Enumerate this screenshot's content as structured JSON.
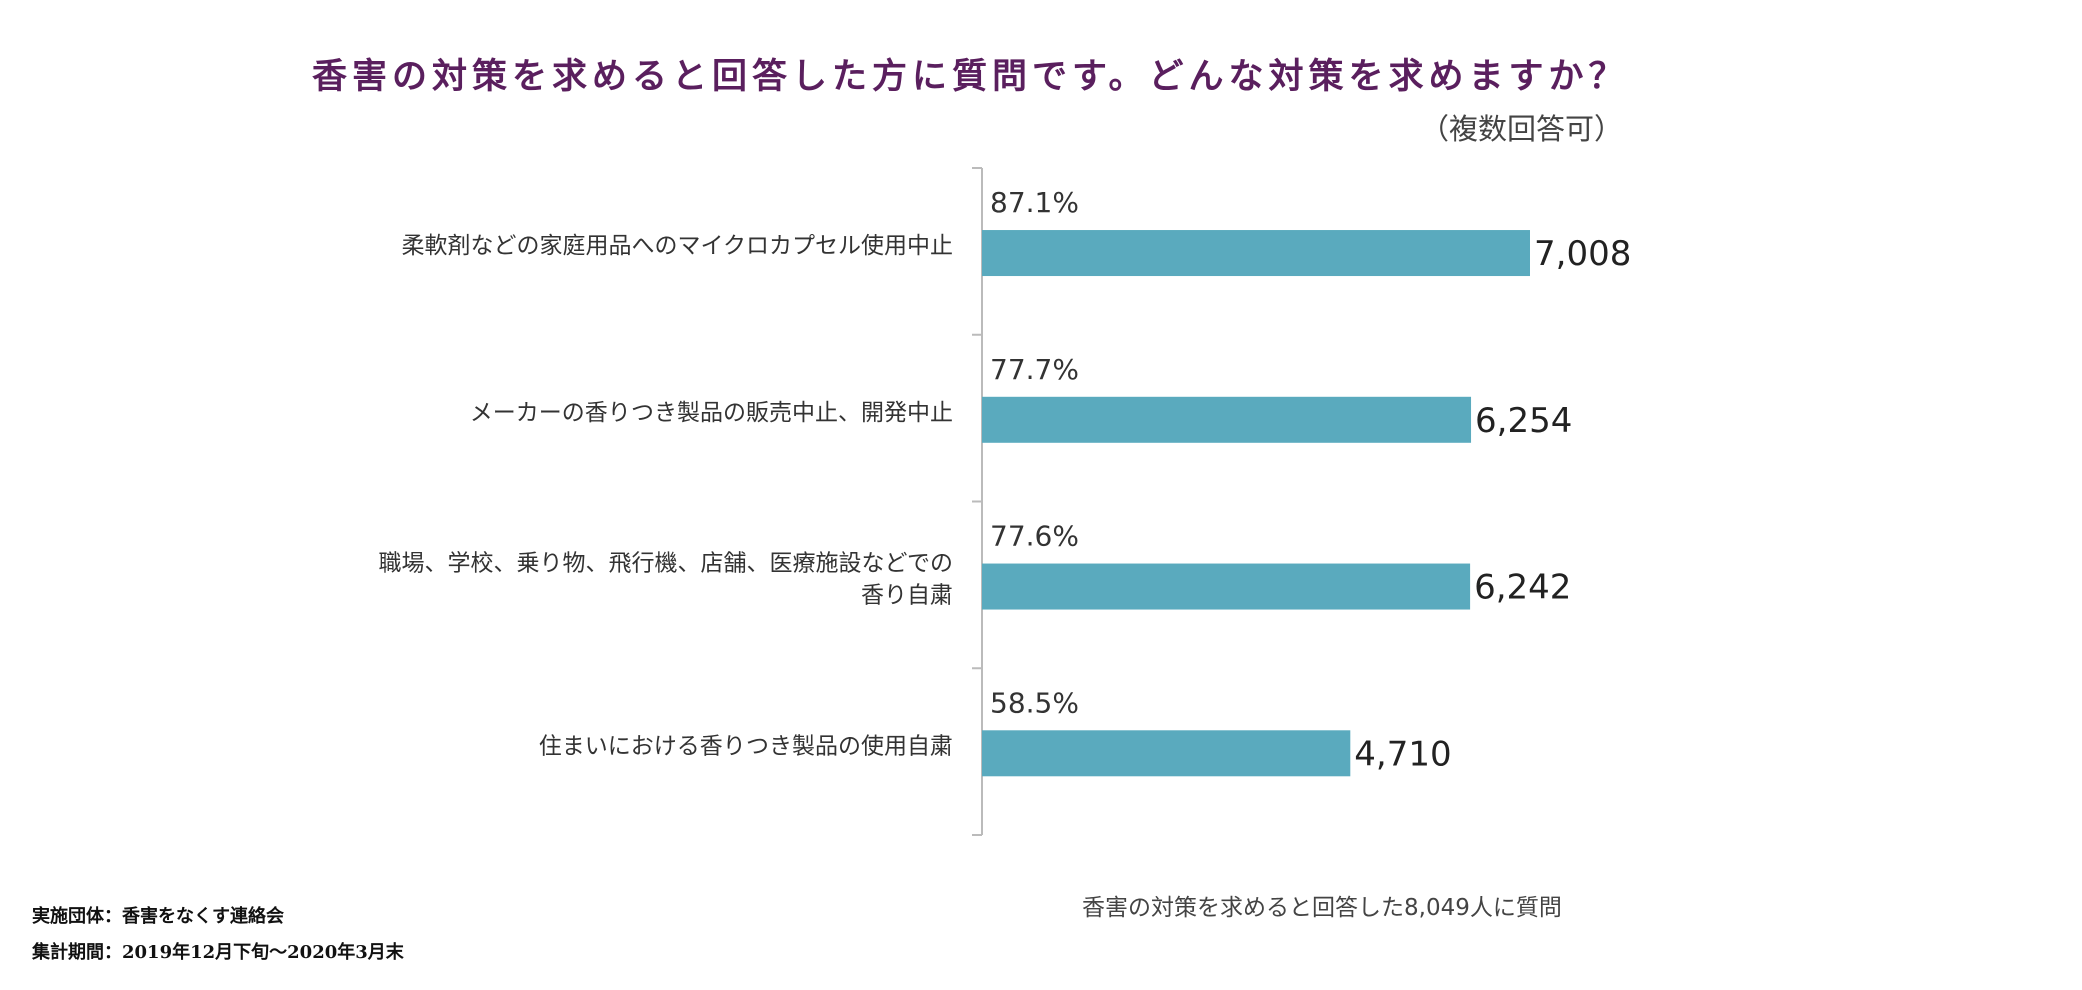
{
  "title": "香害の対策を求めると回答した方に質問です。どんな対策を求めますか？",
  "note": "（複数回答可）",
  "base_note": "香害の対策を求めると回答した8,049人に質問",
  "footer": {
    "organizer": "実施団体：香害をなくす連絡会",
    "period": "集計期間：2019年12月下旬〜2020年3月末"
  },
  "colors": {
    "bar": "#5aaabe",
    "title": "#5a1f5e",
    "axis": "#bbbbbb"
  },
  "chart_data": {
    "type": "bar",
    "orientation": "horizontal",
    "categories": [
      [
        "柔軟剤などの家庭用品へのマイクロカプセル使用中止"
      ],
      [
        "メーカーの香りつき製品の販売中止、開発中止"
      ],
      [
        "職場、学校、乗り物、飛行機、店舗、医療施設などでの",
        "香り自粛"
      ],
      [
        "住まいにおける香りつき製品の使用自粛"
      ]
    ],
    "values": [
      7008,
      6254,
      6242,
      4710
    ],
    "value_labels": [
      "7,008",
      "6,254",
      "6,242",
      "4,710"
    ],
    "percent_labels": [
      "87.1%",
      "77.7%",
      "77.6%",
      "58.5%"
    ],
    "xlim": [
      0,
      7008
    ],
    "grid": false,
    "legend": "none"
  }
}
